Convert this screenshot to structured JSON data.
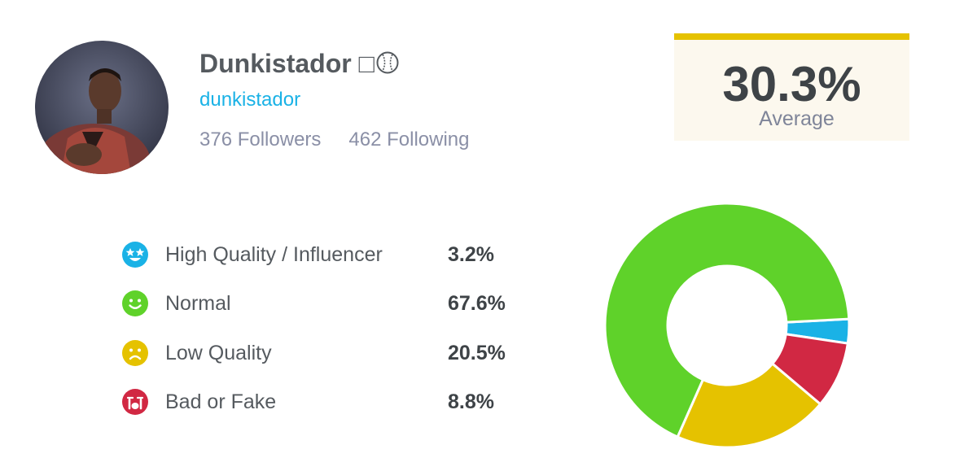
{
  "profile": {
    "name": "Dunkistador",
    "name_glyph": "□",
    "handle": "dunkistador",
    "followers": "376 Followers",
    "following": "462 Following"
  },
  "score": {
    "value": "30.3%",
    "label": "Average",
    "accent_color": "#e5c200"
  },
  "legend": [
    {
      "label": "High Quality / Influencer",
      "value": "3.2%",
      "color": "#1ab2e6",
      "icon": "star-eyes-face-icon"
    },
    {
      "label": "Normal",
      "value": "67.6%",
      "color": "#5fd22a",
      "icon": "smiling-face-icon"
    },
    {
      "label": "Low Quality",
      "value": "20.5%",
      "color": "#e5c200",
      "icon": "frowning-face-icon"
    },
    {
      "label": "Bad or Fake",
      "value": "8.8%",
      "color": "#d12843",
      "icon": "crying-face-icon"
    }
  ],
  "chart_data": {
    "type": "pie",
    "donut": true,
    "categories": [
      "High Quality / Influencer",
      "Normal",
      "Low Quality",
      "Bad or Fake"
    ],
    "values": [
      3.2,
      67.6,
      20.5,
      8.8
    ],
    "colors": [
      "#1ab2e6",
      "#5fd22a",
      "#e5c200",
      "#d12843"
    ]
  }
}
